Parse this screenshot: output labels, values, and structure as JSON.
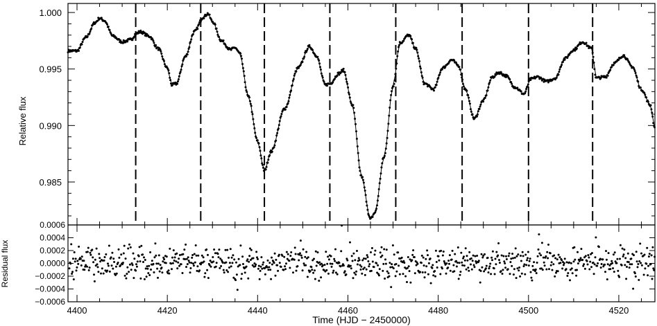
{
  "chart_data": [
    {
      "type": "scatter",
      "panel": "light curve",
      "xlabel": "",
      "ylabel": "Relative flux",
      "xlim": [
        4398,
        4528
      ],
      "ylim": [
        0.9812,
        1.0008
      ],
      "xticks": [
        "4400",
        "4420",
        "4440",
        "4460",
        "4480",
        "4500",
        "4520"
      ],
      "yticks": [
        "0.985",
        "0.990",
        "0.995",
        "1.000"
      ],
      "x": [
        4398,
        4400,
        4402,
        4404,
        4405,
        4406,
        4408,
        4410,
        4412,
        4413,
        4414,
        4416,
        4418,
        4420,
        4421,
        4422,
        4424,
        4426,
        4428,
        4429,
        4430,
        4432,
        4434,
        4435,
        4436,
        4438,
        4440,
        4441.5,
        4443,
        4446,
        4449,
        4451.5,
        4453,
        4455,
        4456,
        4458,
        4459,
        4461,
        4463,
        4465,
        4466,
        4468,
        4470,
        4471.5,
        4473.5,
        4475,
        4477,
        4479,
        4481,
        4483,
        4484.5,
        4486,
        4488,
        4490,
        4492,
        4493.5,
        4495,
        4497,
        4499,
        4500.5,
        4502,
        4504,
        4506,
        4508,
        4510,
        4512,
        4514,
        4515,
        4517,
        4519,
        4521,
        4523,
        4525,
        4527,
        4528
      ],
      "y": [
        0.9966,
        0.9966,
        0.9978,
        0.9991,
        0.9995,
        0.9993,
        0.9979,
        0.9974,
        0.9976,
        0.9981,
        0.9983,
        0.9979,
        0.9968,
        0.9951,
        0.9936,
        0.9937,
        0.9961,
        0.9983,
        0.9996,
        0.9999,
        0.9992,
        0.9975,
        0.9967,
        0.9969,
        0.9964,
        0.9925,
        0.9886,
        0.986,
        0.9877,
        0.9915,
        0.9951,
        0.997,
        0.9962,
        0.9936,
        0.9937,
        0.9946,
        0.9949,
        0.9918,
        0.9855,
        0.9817,
        0.9823,
        0.9872,
        0.9935,
        0.9973,
        0.998,
        0.9968,
        0.9937,
        0.9932,
        0.9951,
        0.9958,
        0.9953,
        0.9932,
        0.9906,
        0.9922,
        0.9943,
        0.9947,
        0.9944,
        0.9934,
        0.9928,
        0.9941,
        0.9943,
        0.9939,
        0.9942,
        0.9959,
        0.9967,
        0.9974,
        0.9968,
        0.9942,
        0.9943,
        0.9955,
        0.9962,
        0.9952,
        0.9932,
        0.9918,
        0.9897
      ],
      "vlines": [
        4413,
        4427.4,
        4441.5,
        4456,
        4470.6,
        4485.3,
        4500,
        4514.2
      ],
      "vline_style": "dashed"
    },
    {
      "type": "scatter",
      "panel": "residuals",
      "xlabel": "Time  (HJD − 2450000)",
      "ylabel": "Residual flux",
      "xlim": [
        4398,
        4528
      ],
      "ylim": [
        -0.0006,
        0.0006
      ],
      "xticks": [
        "4400",
        "4420",
        "4440",
        "4460",
        "4480",
        "4500",
        "4520"
      ],
      "yticks": [
        "−0.0006",
        "−0.0004",
        "−0.0002",
        "0.0000",
        "0.0002",
        "0.0004",
        "0.0006"
      ],
      "note": "residual scatter of roughly ±0.0002 around zero, occasional excursions to ±0.0006"
    }
  ]
}
